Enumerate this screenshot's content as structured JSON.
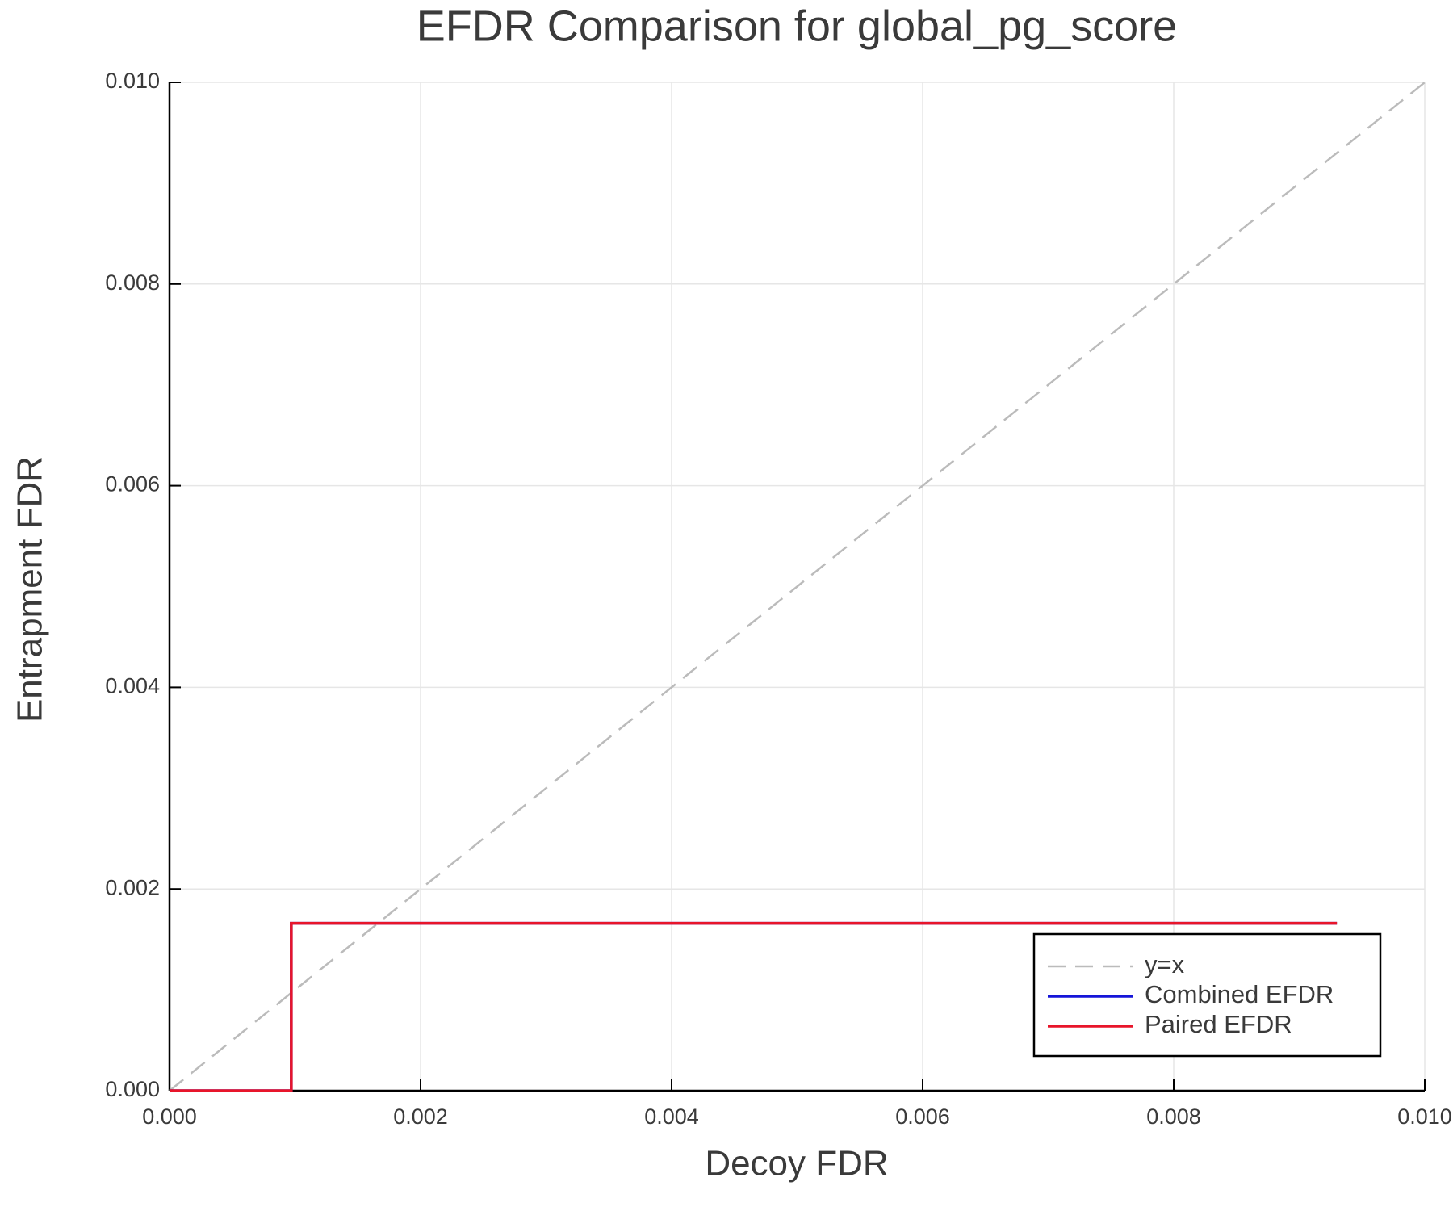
{
  "chart_data": {
    "type": "line",
    "title": "EFDR Comparison for global_pg_score",
    "xlabel": "Decoy FDR",
    "ylabel": "Entrapment FDR",
    "xlim": [
      0,
      0.01
    ],
    "ylim": [
      0,
      0.01
    ],
    "xticks": [
      {
        "value": 0,
        "label": "0.000"
      },
      {
        "value": 0.002,
        "label": "0.002"
      },
      {
        "value": 0.004,
        "label": "0.004"
      },
      {
        "value": 0.006,
        "label": "0.006"
      },
      {
        "value": 0.008,
        "label": "0.008"
      },
      {
        "value": 0.01,
        "label": "0.010"
      }
    ],
    "yticks": [
      {
        "value": 0,
        "label": "0.000"
      },
      {
        "value": 0.002,
        "label": "0.002"
      },
      {
        "value": 0.004,
        "label": "0.004"
      },
      {
        "value": 0.006,
        "label": "0.006"
      },
      {
        "value": 0.008,
        "label": "0.008"
      },
      {
        "value": 0.01,
        "label": "0.010"
      }
    ],
    "grid": true,
    "legend": "lower right",
    "series": [
      {
        "name": "y=x",
        "color": "#bbbbbb",
        "dashed": true,
        "x": [
          0,
          0.01
        ],
        "values": [
          0,
          0.01
        ]
      },
      {
        "name": "Combined EFDR",
        "color": "#1515d8",
        "x": [
          0,
          0.00097,
          0.00097,
          0.0093
        ],
        "values": [
          0,
          0,
          0.00166,
          0.00166
        ]
      },
      {
        "name": "Paired EFDR",
        "color": "#e8152a",
        "x": [
          0,
          0.00097,
          0.00097,
          0.0093
        ],
        "values": [
          0,
          0,
          0.00166,
          0.00166
        ]
      }
    ]
  }
}
